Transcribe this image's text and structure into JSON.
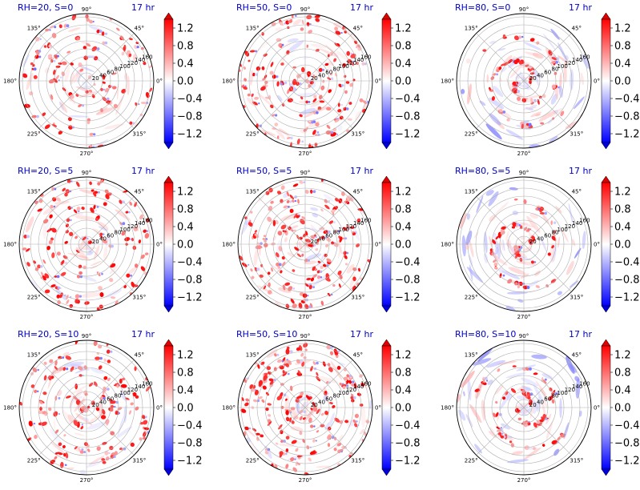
{
  "panel_titles": [
    "RH=20, S=0",
    "RH=50, S=0",
    "RH=80, S=0",
    "RH=20, S=5",
    "RH=50, S=5",
    "RH=80, S=5",
    "RH=20, S=10",
    "RH=50, S=10",
    "RH=80, S=10"
  ],
  "time_label": "17 hr",
  "angle_labels": [
    "0°",
    "45°",
    "90°",
    "135°",
    "180°",
    "225°",
    "270°",
    "315°"
  ],
  "radial_labels": [
    "20",
    "40",
    "60",
    "80",
    "100",
    "120",
    "140",
    "160"
  ],
  "colorbar_ticks": [
    "1.2",
    "0.8",
    "0.4",
    "0.0",
    "−0.4",
    "−0.8",
    "−1.2"
  ],
  "colors": {
    "pos": "#ff0000",
    "neg": "#0000ff",
    "zero": "#ffffff",
    "title": "#0000cc"
  },
  "chart_data": [
    {
      "type": "heatmap",
      "projection": "polar",
      "title": "RH=20, S=0",
      "annotation": "17 hr",
      "r_ticks": [
        20,
        40,
        60,
        80,
        100,
        120,
        140,
        160
      ],
      "theta_ticks_deg": [
        0,
        45,
        90,
        135,
        180,
        225,
        270,
        315
      ],
      "color_range": [
        -1.4,
        1.4
      ],
      "colorbar_ticks": [
        1.2,
        0.8,
        0.4,
        0.0,
        -0.4,
        -0.8,
        -1.2
      ],
      "pattern": {
        "rh": 20,
        "shear": 0
      }
    },
    {
      "type": "heatmap",
      "projection": "polar",
      "title": "RH=50, S=0",
      "annotation": "17 hr",
      "r_ticks": [
        20,
        40,
        60,
        80,
        100,
        120,
        140,
        160
      ],
      "theta_ticks_deg": [
        0,
        45,
        90,
        135,
        180,
        225,
        270,
        315
      ],
      "color_range": [
        -1.4,
        1.4
      ],
      "colorbar_ticks": [
        1.2,
        0.8,
        0.4,
        0.0,
        -0.4,
        -0.8,
        -1.2
      ],
      "pattern": {
        "rh": 50,
        "shear": 0
      }
    },
    {
      "type": "heatmap",
      "projection": "polar",
      "title": "RH=80, S=0",
      "annotation": "17 hr",
      "r_ticks": [
        20,
        40,
        60,
        80,
        100,
        120,
        140,
        160
      ],
      "theta_ticks_deg": [
        0,
        45,
        90,
        135,
        180,
        225,
        270,
        315
      ],
      "color_range": [
        -1.4,
        1.4
      ],
      "colorbar_ticks": [
        1.2,
        0.8,
        0.4,
        0.0,
        -0.4,
        -0.8,
        -1.2
      ],
      "pattern": {
        "rh": 80,
        "shear": 0
      }
    },
    {
      "type": "heatmap",
      "projection": "polar",
      "title": "RH=20, S=5",
      "annotation": "17 hr",
      "r_ticks": [
        20,
        40,
        60,
        80,
        100,
        120,
        140,
        160
      ],
      "theta_ticks_deg": [
        0,
        45,
        90,
        135,
        180,
        225,
        270,
        315
      ],
      "color_range": [
        -1.4,
        1.4
      ],
      "colorbar_ticks": [
        1.2,
        0.8,
        0.4,
        0.0,
        -0.4,
        -0.8,
        -1.2
      ],
      "pattern": {
        "rh": 20,
        "shear": 5
      }
    },
    {
      "type": "heatmap",
      "projection": "polar",
      "title": "RH=50, S=5",
      "annotation": "17 hr",
      "r_ticks": [
        20,
        40,
        60,
        80,
        100,
        120,
        140,
        160
      ],
      "theta_ticks_deg": [
        0,
        45,
        90,
        135,
        180,
        225,
        270,
        315
      ],
      "color_range": [
        -1.4,
        1.4
      ],
      "colorbar_ticks": [
        1.2,
        0.8,
        0.4,
        0.0,
        -0.4,
        -0.8,
        -1.2
      ],
      "pattern": {
        "rh": 50,
        "shear": 5
      }
    },
    {
      "type": "heatmap",
      "projection": "polar",
      "title": "RH=80, S=5",
      "annotation": "17 hr",
      "r_ticks": [
        20,
        40,
        60,
        80,
        100,
        120,
        140,
        160
      ],
      "theta_ticks_deg": [
        0,
        45,
        90,
        135,
        180,
        225,
        270,
        315
      ],
      "color_range": [
        -1.4,
        1.4
      ],
      "colorbar_ticks": [
        1.2,
        0.8,
        0.4,
        0.0,
        -0.4,
        -0.8,
        -1.2
      ],
      "pattern": {
        "rh": 80,
        "shear": 5
      }
    },
    {
      "type": "heatmap",
      "projection": "polar",
      "title": "RH=20, S=10",
      "annotation": "17 hr",
      "r_ticks": [
        20,
        40,
        60,
        80,
        100,
        120,
        140,
        160
      ],
      "theta_ticks_deg": [
        0,
        45,
        90,
        135,
        180,
        225,
        270,
        315
      ],
      "color_range": [
        -1.4,
        1.4
      ],
      "colorbar_ticks": [
        1.2,
        0.8,
        0.4,
        0.0,
        -0.4,
        -0.8,
        -1.2
      ],
      "pattern": {
        "rh": 20,
        "shear": 10
      }
    },
    {
      "type": "heatmap",
      "projection": "polar",
      "title": "RH=50, S=10",
      "annotation": "17 hr",
      "r_ticks": [
        20,
        40,
        60,
        80,
        100,
        120,
        140,
        160
      ],
      "theta_ticks_deg": [
        0,
        45,
        90,
        135,
        180,
        225,
        270,
        315
      ],
      "color_range": [
        -1.4,
        1.4
      ],
      "colorbar_ticks": [
        1.2,
        0.8,
        0.4,
        0.0,
        -0.4,
        -0.8,
        -1.2
      ],
      "pattern": {
        "rh": 50,
        "shear": 10
      }
    },
    {
      "type": "heatmap",
      "projection": "polar",
      "title": "RH=80, S=10",
      "annotation": "17 hr",
      "r_ticks": [
        20,
        40,
        60,
        80,
        100,
        120,
        140,
        160
      ],
      "theta_ticks_deg": [
        0,
        45,
        90,
        135,
        180,
        225,
        270,
        315
      ],
      "color_range": [
        -1.4,
        1.4
      ],
      "colorbar_ticks": [
        1.2,
        0.8,
        0.4,
        0.0,
        -0.4,
        -0.8,
        -1.2
      ],
      "pattern": {
        "rh": 80,
        "shear": 10
      }
    }
  ]
}
